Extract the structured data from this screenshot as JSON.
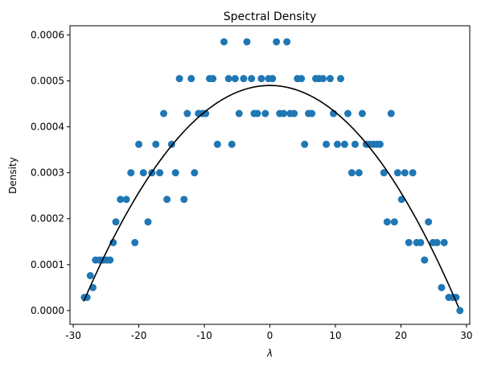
{
  "chart_data": {
    "type": "scatter",
    "title": "Spectral Density",
    "xlabel": "λ",
    "ylabel": "Density",
    "xlim": [
      -30.5,
      30.5
    ],
    "ylim": [
      -3e-05,
      0.00062
    ],
    "xticks": [
      -30,
      -20,
      -10,
      0,
      10,
      20,
      30
    ],
    "yticks": [
      0.0,
      0.0001,
      0.0002,
      0.0003,
      0.0004,
      0.0005,
      0.0006
    ],
    "ytick_labels": [
      "0.0000",
      "0.0001",
      "0.0002",
      "0.0003",
      "0.0004",
      "0.0005",
      "0.0006"
    ],
    "grid": false,
    "colors": {
      "points": "#1f77b4",
      "curve": "#000000",
      "axes": "#000000"
    },
    "series": [
      {
        "kind": "scatter",
        "points": [
          [
            -28.3,
            2.87e-05
          ],
          [
            -27.9,
            2.87e-05
          ],
          [
            -27.4,
            7.6e-05
          ],
          [
            -27.0,
            5e-05
          ],
          [
            -26.6,
            0.00011
          ],
          [
            -26.0,
            0.00011
          ],
          [
            -25.4,
            0.00011
          ],
          [
            -24.9,
            0.00011
          ],
          [
            -24.4,
            0.00011
          ],
          [
            -23.9,
            0.000148
          ],
          [
            -23.5,
            0.000193
          ],
          [
            -22.8,
            0.000242
          ],
          [
            -21.9,
            0.000242
          ],
          [
            -21.2,
            0.0003
          ],
          [
            -20.6,
            0.000148
          ],
          [
            -20.0,
            0.000362
          ],
          [
            -19.3,
            0.0003
          ],
          [
            -18.6,
            0.000193
          ],
          [
            -18.0,
            0.0003
          ],
          [
            -17.4,
            0.000362
          ],
          [
            -16.8,
            0.0003
          ],
          [
            -16.2,
            0.000429
          ],
          [
            -15.7,
            0.000242
          ],
          [
            -15.0,
            0.000362
          ],
          [
            -14.4,
            0.0003
          ],
          [
            -13.8,
            0.000505
          ],
          [
            -13.1,
            0.000242
          ],
          [
            -12.6,
            0.000429
          ],
          [
            -12.0,
            0.000505
          ],
          [
            -11.5,
            0.0003
          ],
          [
            -10.9,
            0.000429
          ],
          [
            -10.3,
            0.000429
          ],
          [
            -9.8,
            0.000429
          ],
          [
            -9.2,
            0.000505
          ],
          [
            -8.7,
            0.000505
          ],
          [
            -8.0,
            0.000362
          ],
          [
            -7.0,
            0.000585
          ],
          [
            -6.3,
            0.000505
          ],
          [
            -5.8,
            0.000362
          ],
          [
            -5.3,
            0.000505
          ],
          [
            -4.7,
            0.000429
          ],
          [
            -4.0,
            0.000505
          ],
          [
            -3.5,
            0.000585
          ],
          [
            -2.8,
            0.000505
          ],
          [
            -2.4,
            0.000429
          ],
          [
            -1.9,
            0.000429
          ],
          [
            -1.3,
            0.000505
          ],
          [
            -0.7,
            0.000429
          ],
          [
            -0.2,
            0.000505
          ],
          [
            0.4,
            0.000505
          ],
          [
            1.0,
            0.000585
          ],
          [
            1.5,
            0.000429
          ],
          [
            2.1,
            0.000429
          ],
          [
            2.6,
            0.000585
          ],
          [
            3.1,
            0.000429
          ],
          [
            3.7,
            0.000429
          ],
          [
            4.2,
            0.000505
          ],
          [
            4.8,
            0.000505
          ],
          [
            5.3,
            0.000362
          ],
          [
            5.9,
            0.000429
          ],
          [
            6.4,
            0.000429
          ],
          [
            7.0,
            0.000505
          ],
          [
            7.5,
            0.000505
          ],
          [
            8.1,
            0.000505
          ],
          [
            8.6,
            0.000362
          ],
          [
            9.2,
            0.000505
          ],
          [
            9.7,
            0.000429
          ],
          [
            10.3,
            0.000362
          ],
          [
            10.8,
            0.000505
          ],
          [
            11.4,
            0.000362
          ],
          [
            11.9,
            0.000429
          ],
          [
            12.5,
            0.0003
          ],
          [
            13.0,
            0.000362
          ],
          [
            13.6,
            0.0003
          ],
          [
            14.1,
            0.000429
          ],
          [
            14.7,
            0.000362
          ],
          [
            15.2,
            0.000362
          ],
          [
            15.8,
            0.000362
          ],
          [
            16.3,
            0.000362
          ],
          [
            16.8,
            0.000362
          ],
          [
            17.4,
            0.0003
          ],
          [
            17.9,
            0.000193
          ],
          [
            18.5,
            0.000429
          ],
          [
            19.0,
            0.000193
          ],
          [
            19.5,
            0.0003
          ],
          [
            20.1,
            0.000242
          ],
          [
            20.6,
            0.0003
          ],
          [
            21.2,
            0.000148
          ],
          [
            21.8,
            0.0003
          ],
          [
            22.4,
            0.000148
          ],
          [
            23.0,
            0.000148
          ],
          [
            23.6,
            0.00011
          ],
          [
            24.2,
            0.000193
          ],
          [
            24.9,
            0.000148
          ],
          [
            25.5,
            0.000148
          ],
          [
            26.2,
            5e-05
          ],
          [
            26.6,
            0.000148
          ],
          [
            27.3,
            2.87e-05
          ],
          [
            27.9,
            2.87e-05
          ],
          [
            28.4,
            2.87e-05
          ],
          [
            29.0,
            0.0
          ]
        ]
      },
      {
        "kind": "line",
        "equation": "0.00049 * (1 - (x/29)^2)",
        "x_range": [
          -28.4,
          28.8
        ]
      }
    ]
  }
}
